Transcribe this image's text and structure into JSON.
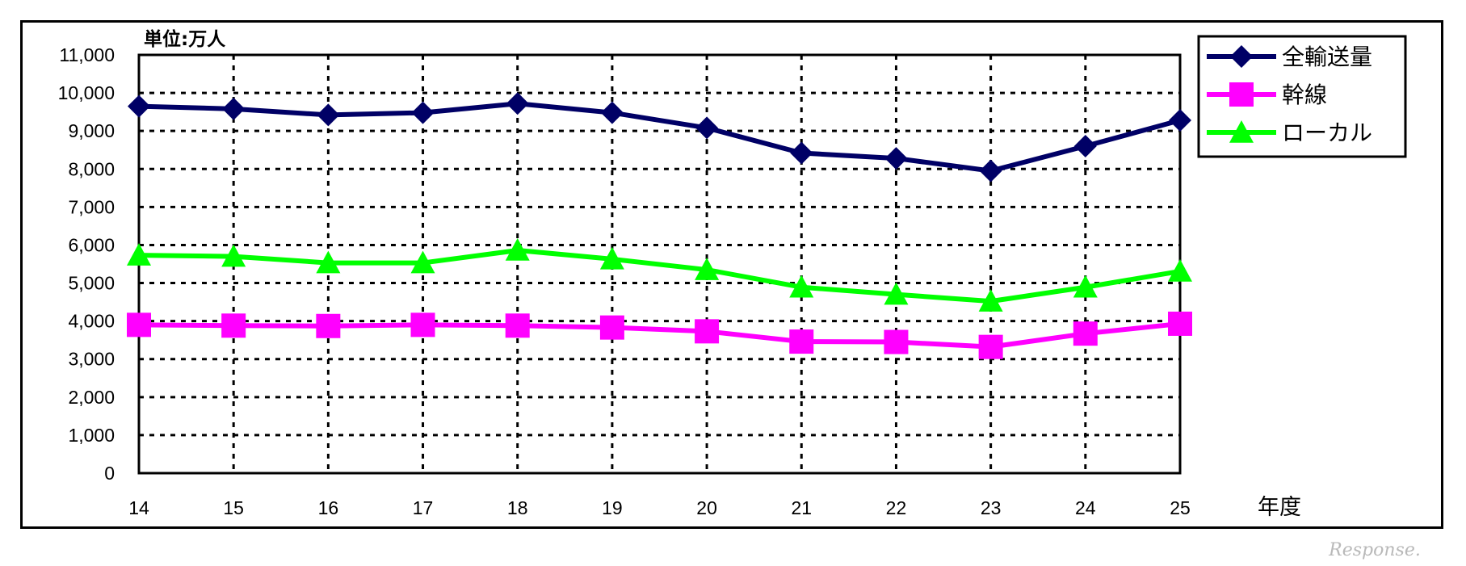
{
  "chart_data": {
    "type": "line",
    "unit_label": "単位:万人",
    "xunit_label": "年度",
    "categories": [
      "14",
      "15",
      "16",
      "17",
      "18",
      "19",
      "20",
      "21",
      "22",
      "23",
      "24",
      "25"
    ],
    "ylim": [
      0,
      11000
    ],
    "yticks": [
      0,
      1000,
      2000,
      3000,
      4000,
      5000,
      6000,
      7000,
      8000,
      9000,
      10000,
      11000
    ],
    "ytick_labels": [
      "0",
      "1,000",
      "2,000",
      "3,000",
      "4,000",
      "5,000",
      "6,000",
      "7,000",
      "8,000",
      "9,000",
      "10,000",
      "11,000"
    ],
    "grid": "dotted",
    "legend_position": "top-right",
    "series": [
      {
        "name": "全輸送量",
        "color": "#000066",
        "marker": "diamond",
        "values": [
          9650,
          9580,
          9420,
          9480,
          9720,
          9480,
          9080,
          8420,
          8280,
          7950,
          8600,
          9280
        ]
      },
      {
        "name": "幹線",
        "color": "#ff00ff",
        "marker": "square",
        "values": [
          3900,
          3880,
          3870,
          3900,
          3880,
          3830,
          3730,
          3460,
          3450,
          3320,
          3670,
          3930
        ]
      },
      {
        "name": "ローカル",
        "color": "#00ff00",
        "marker": "triangle",
        "values": [
          5730,
          5700,
          5530,
          5530,
          5860,
          5630,
          5350,
          4890,
          4700,
          4520,
          4890,
          5310
        ]
      }
    ]
  },
  "watermark": "Response."
}
